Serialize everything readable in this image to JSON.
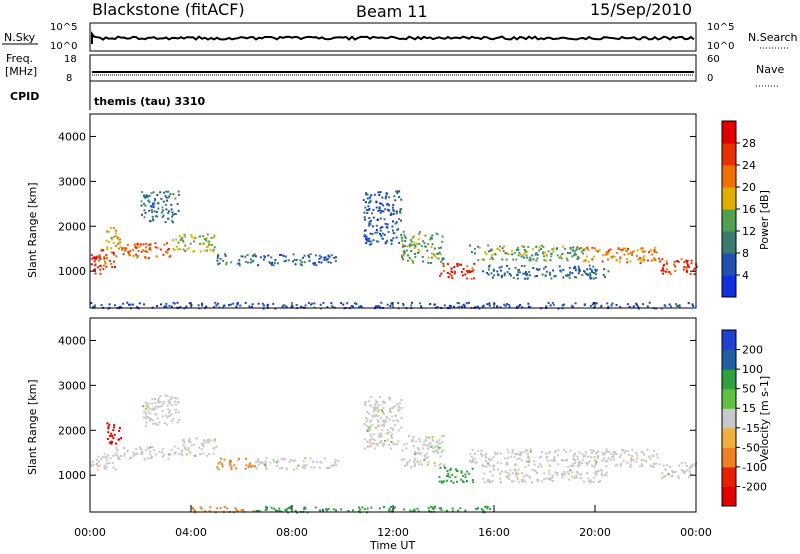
{
  "header": {
    "station": "Blackstone (fitACF)",
    "beam": "Beam 11",
    "date": "15/Sep/2010"
  },
  "top_panels": {
    "nsky_label": "N.Sky",
    "nsky_ticks": [
      "10^5",
      "10^0"
    ],
    "nsearch_label": "N.Search",
    "nsearch_ticks": [
      "10^5",
      "10^0"
    ],
    "freq_label_1": "Freq.",
    "freq_label_2": "[MHz]",
    "freq_ticks": [
      "18",
      "8"
    ],
    "nave_label": "Nave",
    "nave_ticks": [
      "60",
      "0"
    ],
    "cpid_label": "CPID",
    "cpid_value": "themis (tau) 3310"
  },
  "chart_data": [
    {
      "type": "heatmap",
      "name": "power",
      "ylabel": "Slant Range [km]",
      "ylim": [
        180,
        4500
      ],
      "yticks": [
        1000,
        2000,
        3000,
        4000
      ],
      "xlim": [
        0,
        24
      ],
      "colorbar_label": "Power [dB]",
      "colorbar_ticks": [
        4,
        8,
        12,
        16,
        20,
        24,
        28
      ],
      "colorbar_range": [
        0,
        32
      ],
      "colors": [
        "#1030e0",
        "#2050b0",
        "#3a7a70",
        "#50a050",
        "#e0b000",
        "#f07000",
        "#e83000",
        "#e00000"
      ],
      "regions": [
        {
          "t": [
            0.0,
            0.4
          ],
          "r": [
            950,
            1400
          ],
          "value": 28
        },
        {
          "t": [
            0.3,
            1.0
          ],
          "r": [
            1050,
            1500
          ],
          "value": 26
        },
        {
          "t": [
            0.6,
            1.2
          ],
          "r": [
            1500,
            2000
          ],
          "value": 18
        },
        {
          "t": [
            1.0,
            3.2
          ],
          "r": [
            1300,
            1650
          ],
          "value": 24
        },
        {
          "t": [
            2.0,
            3.5
          ],
          "r": [
            2100,
            2800
          ],
          "value": 9
        },
        {
          "t": [
            3.2,
            5.0
          ],
          "r": [
            1450,
            1850
          ],
          "value": 16
        },
        {
          "t": [
            5.0,
            6.5
          ],
          "r": [
            1150,
            1400
          ],
          "value": 10
        },
        {
          "t": [
            6.5,
            9.8
          ],
          "r": [
            1150,
            1400
          ],
          "value": 7
        },
        {
          "t": [
            10.8,
            12.3
          ],
          "r": [
            1600,
            2800
          ],
          "value": 6
        },
        {
          "t": [
            12.3,
            14.0
          ],
          "r": [
            1200,
            1900
          ],
          "value": 14
        },
        {
          "t": [
            13.8,
            15.2
          ],
          "r": [
            850,
            1200
          ],
          "value": 27
        },
        {
          "t": [
            15.0,
            19.5
          ],
          "r": [
            1250,
            1600
          ],
          "value": 14
        },
        {
          "t": [
            15.5,
            20.5
          ],
          "r": [
            850,
            1150
          ],
          "value": 8
        },
        {
          "t": [
            19.5,
            22.5
          ],
          "r": [
            1200,
            1550
          ],
          "value": 22
        },
        {
          "t": [
            22.5,
            24.0
          ],
          "r": [
            950,
            1300
          ],
          "value": 27
        },
        {
          "t": [
            0.0,
            24.0
          ],
          "r": [
            190,
            320
          ],
          "value": 5
        }
      ]
    },
    {
      "type": "heatmap",
      "name": "velocity",
      "ylabel": "Slant Range [km]",
      "ylim": [
        180,
        4500
      ],
      "yticks": [
        1000,
        2000,
        3000,
        4000
      ],
      "xlim": [
        0,
        24
      ],
      "xticks": [
        "00:00",
        "04:00",
        "08:00",
        "12:00",
        "16:00",
        "20:00",
        "00:00"
      ],
      "xlabel": "Time UT",
      "colorbar_label": "Velocity [m s-1]",
      "colorbar_ticks": [
        "200",
        "100",
        "50",
        "15",
        "-15",
        "-50",
        "-100",
        "-200"
      ],
      "colors": [
        "#2040d0",
        "#2060a0",
        "#30a040",
        "#60c040",
        "#c8c8c8",
        "#f0b040",
        "#f08020",
        "#e82000",
        "#e00000"
      ],
      "regions": [
        {
          "t": [
            0.0,
            1.0
          ],
          "r": [
            1100,
            1500
          ],
          "v": 0
        },
        {
          "t": [
            0.6,
            1.2
          ],
          "r": [
            1700,
            2200
          ],
          "v": -180
        },
        {
          "t": [
            1.0,
            3.2
          ],
          "r": [
            1350,
            1650
          ],
          "v": 0
        },
        {
          "t": [
            2.0,
            3.5
          ],
          "r": [
            2100,
            2800
          ],
          "v": 0
        },
        {
          "t": [
            3.2,
            5.0
          ],
          "r": [
            1450,
            1850
          ],
          "v": 0
        },
        {
          "t": [
            5.0,
            6.5
          ],
          "r": [
            1150,
            1400
          ],
          "v": -40
        },
        {
          "t": [
            6.5,
            9.8
          ],
          "r": [
            1150,
            1400
          ],
          "v": 0
        },
        {
          "t": [
            10.8,
            12.3
          ],
          "r": [
            1600,
            2800
          ],
          "v": 0
        },
        {
          "t": [
            12.3,
            14.0
          ],
          "r": [
            1200,
            1900
          ],
          "v": 0
        },
        {
          "t": [
            13.8,
            15.2
          ],
          "r": [
            850,
            1200
          ],
          "v": 60
        },
        {
          "t": [
            15.0,
            22.5
          ],
          "r": [
            1200,
            1600
          ],
          "v": 0
        },
        {
          "t": [
            15.5,
            20.5
          ],
          "r": [
            850,
            1150
          ],
          "v": 0
        },
        {
          "t": [
            22.5,
            24.0
          ],
          "r": [
            950,
            1300
          ],
          "v": 0
        },
        {
          "t": [
            4.0,
            6.5
          ],
          "r": [
            190,
            320
          ],
          "v": -40
        },
        {
          "t": [
            6.5,
            16.0
          ],
          "r": [
            190,
            320
          ],
          "v": 60
        }
      ]
    }
  ]
}
